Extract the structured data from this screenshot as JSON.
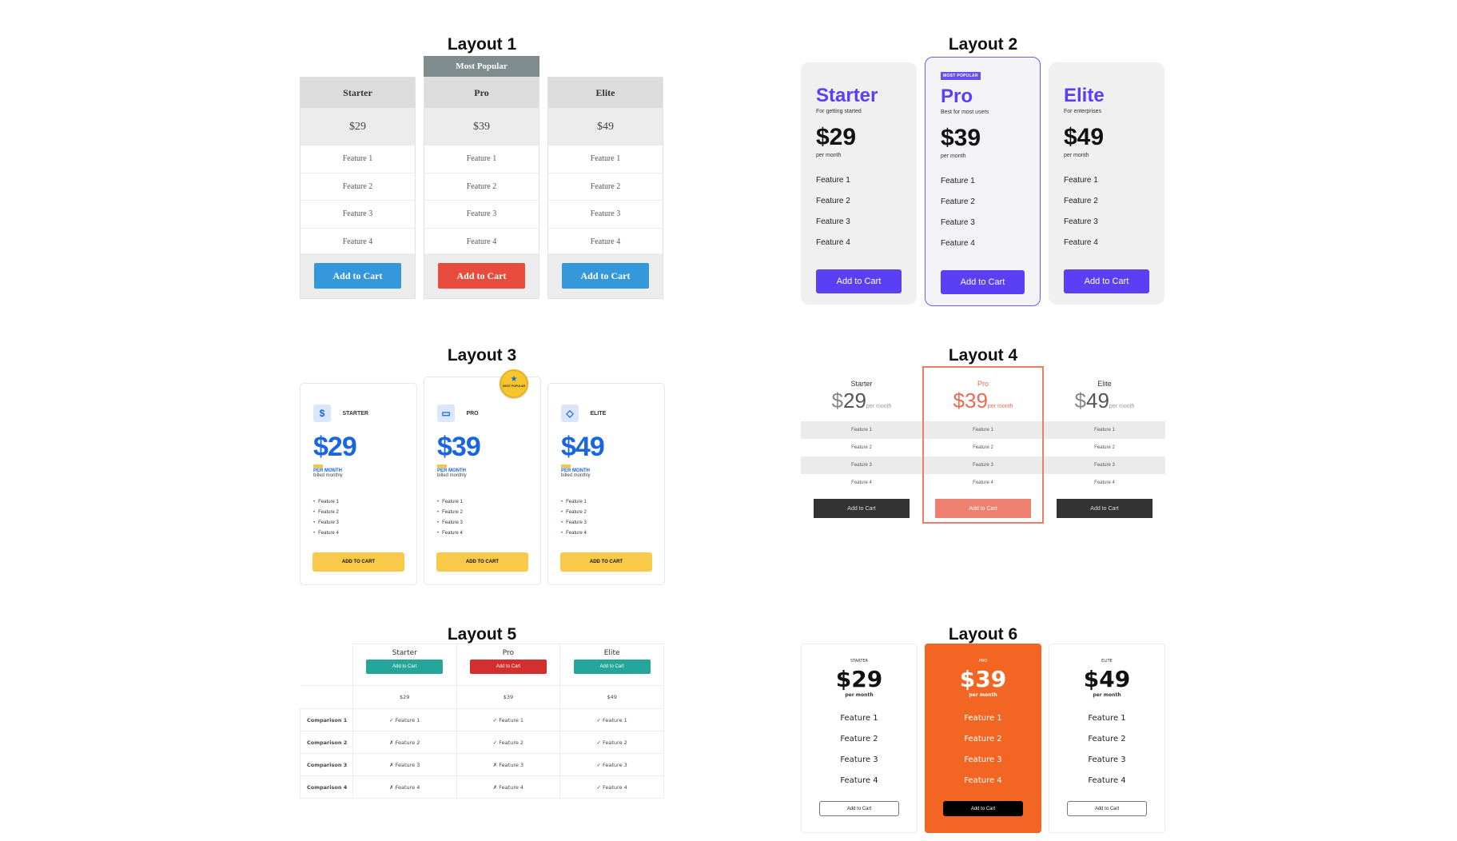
{
  "layout1": {
    "title": "Layout 1",
    "badge": "Most Popular",
    "plans": [
      {
        "name": "Starter",
        "price": "$29",
        "features": [
          "Feature 1",
          "Feature 2",
          "Feature 3",
          "Feature 4"
        ],
        "button": "Add to Cart",
        "button_color": "#3498db"
      },
      {
        "name": "Pro",
        "price": "$39",
        "features": [
          "Feature 1",
          "Feature 2",
          "Feature 3",
          "Feature 4"
        ],
        "button": "Add to Cart",
        "button_color": "#e74c3c"
      },
      {
        "name": "Elite",
        "price": "$49",
        "features": [
          "Feature 1",
          "Feature 2",
          "Feature 3",
          "Feature 4"
        ],
        "button": "Add to Cart",
        "button_color": "#3498db"
      }
    ]
  },
  "layout2": {
    "title": "Layout 2",
    "badge": "MOST POPULAR",
    "accent": "#5b3ff5",
    "plans": [
      {
        "name": "Starter",
        "subtitle": "For getting started",
        "price": "$29",
        "per": "per month",
        "features": [
          "Feature 1",
          "Feature 2",
          "Feature 3",
          "Feature 4"
        ],
        "button": "Add to Cart"
      },
      {
        "name": "Pro",
        "subtitle": "Best for most users",
        "price": "$39",
        "per": "per month",
        "features": [
          "Feature 1",
          "Feature 2",
          "Feature 3",
          "Feature 4"
        ],
        "button": "Add to Cart"
      },
      {
        "name": "Elite",
        "subtitle": "For enterprises",
        "price": "$49",
        "per": "per month",
        "features": [
          "Feature 1",
          "Feature 2",
          "Feature 3",
          "Feature 4"
        ],
        "button": "Add to Cart"
      }
    ]
  },
  "layout3": {
    "title": "Layout 3",
    "badge": "MOST POPULAR",
    "accent": "#1a66e0",
    "button_color": "#f9c94a",
    "plans": [
      {
        "icon": "dollar-icon",
        "icon_glyph": "$",
        "name": "STARTER",
        "price": "$29",
        "per": "PER MONTH",
        "billing": "billed monthly",
        "features": [
          "Feature 1",
          "Feature 2",
          "Feature 3",
          "Feature 4"
        ],
        "button": "ADD TO CART"
      },
      {
        "icon": "credit-card-icon",
        "icon_glyph": "▭",
        "name": "PRO",
        "price": "$39",
        "per": "PER MONTH",
        "billing": "billed monthly",
        "features": [
          "Feature 1",
          "Feature 2",
          "Feature 3",
          "Feature 4"
        ],
        "button": "ADD TO CART"
      },
      {
        "icon": "diamond-icon",
        "icon_glyph": "◇",
        "name": "ELITE",
        "price": "$49",
        "per": "PER MONTH",
        "billing": "billed monthly",
        "features": [
          "Feature 1",
          "Feature 2",
          "Feature 3",
          "Feature 4"
        ],
        "button": "ADD TO CART"
      }
    ]
  },
  "layout4": {
    "title": "Layout 4",
    "accent": "#ea6b55",
    "plans": [
      {
        "name": "Starter",
        "currency": "$",
        "amount": "29",
        "per": "per month",
        "features": [
          "Feature 1",
          "Feature 2",
          "Feature 3",
          "Feature 4"
        ],
        "button": "Add to Cart"
      },
      {
        "name": "Pro",
        "currency": "$",
        "amount": "39",
        "per": "per month",
        "features": [
          "Feature 1",
          "Feature 2",
          "Feature 3",
          "Feature 4"
        ],
        "button": "Add to Cart"
      },
      {
        "name": "Elite",
        "currency": "$",
        "amount": "49",
        "per": "per month",
        "features": [
          "Feature 1",
          "Feature 2",
          "Feature 3",
          "Feature 4"
        ],
        "button": "Add to Cart"
      }
    ]
  },
  "layout5": {
    "title": "Layout 5",
    "plans": [
      {
        "name": "Starter",
        "button": "Add to Cart",
        "button_color": "#26a69a",
        "price": "$29"
      },
      {
        "name": "Pro",
        "button": "Add to Cart",
        "button_color": "#d32f2f",
        "price": "$39"
      },
      {
        "name": "Elite",
        "button": "Add to Cart",
        "button_color": "#26a69a",
        "price": "$49"
      }
    ],
    "rows": [
      {
        "label": "Comparison 1",
        "cells": [
          "✓ Feature 1",
          "✓ Feature 1",
          "✓ Feature 1"
        ]
      },
      {
        "label": "Comparison 2",
        "cells": [
          "✗ Feature 2",
          "✓ Feature 2",
          "✓ Feature 2"
        ]
      },
      {
        "label": "Comparison 3",
        "cells": [
          "✗ Feature 3",
          "✗ Feature 3",
          "✓ Feature 3"
        ]
      },
      {
        "label": "Comparison 4",
        "cells": [
          "✗ Feature 4",
          "✗ Feature 4",
          "✓ Feature 4"
        ]
      }
    ]
  },
  "layout6": {
    "title": "Layout 6",
    "accent": "#f26522",
    "plans": [
      {
        "name": "STARTER",
        "price": "$29",
        "per": "per month",
        "features": [
          "Feature 1",
          "Feature 2",
          "Feature 3",
          "Feature 4"
        ],
        "button": "Add to Cart"
      },
      {
        "name": "PRO",
        "price": "$39",
        "per": "per month",
        "features": [
          "Feature 1",
          "Feature 2",
          "Feature 3",
          "Feature 4"
        ],
        "button": "Add to Cart"
      },
      {
        "name": "ELITE",
        "price": "$49",
        "per": "per month",
        "features": [
          "Feature 1",
          "Feature 2",
          "Feature 3",
          "Feature 4"
        ],
        "button": "Add to Cart"
      }
    ]
  }
}
